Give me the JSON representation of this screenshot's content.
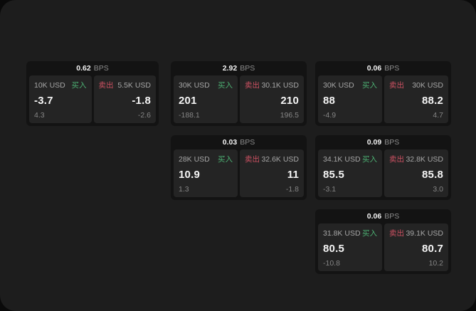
{
  "labels": {
    "bps": "BPS",
    "buy": "买入",
    "sell": "卖出"
  },
  "colors": {
    "outer_bg": "#0a0a0a",
    "screen_bg": "#1d1d1d",
    "card_bg": "#131313",
    "panel_bg": "#242424",
    "buy_green": "#4caf72",
    "sell_red": "#cd5162",
    "value_white": "#f5f5f5",
    "muted_gray": "#858585"
  },
  "cards": [
    {
      "bps": "0.62",
      "buy": {
        "size": "10K USD",
        "value": "-3.7",
        "delta": "4.3"
      },
      "sell": {
        "size": "5.5K USD",
        "value": "-1.8",
        "delta": "-2.6"
      }
    },
    {
      "bps": "2.92",
      "buy": {
        "size": "30K USD",
        "value": "201",
        "delta": "-188.1"
      },
      "sell": {
        "size": "30.1K USD",
        "value": "210",
        "delta": "196.5"
      }
    },
    {
      "bps": "0.06",
      "buy": {
        "size": "30K USD",
        "value": "88",
        "delta": "-4.9"
      },
      "sell": {
        "size": "30K USD",
        "value": "88.2",
        "delta": "4.7"
      }
    },
    {
      "bps": "0.03",
      "buy": {
        "size": "28K USD",
        "value": "10.9",
        "delta": "1.3"
      },
      "sell": {
        "size": "32.6K USD",
        "value": "11",
        "delta": "-1.8"
      }
    },
    {
      "bps": "0.09",
      "buy": {
        "size": "34.1K USD",
        "value": "85.5",
        "delta": "-3.1"
      },
      "sell": {
        "size": "32.8K USD",
        "value": "85.8",
        "delta": "3.0"
      }
    },
    {
      "bps": "0.06",
      "buy": {
        "size": "31.8K USD",
        "value": "80.5",
        "delta": "-10.8"
      },
      "sell": {
        "size": "39.1K USD",
        "value": "80.7",
        "delta": "10.2"
      }
    }
  ]
}
